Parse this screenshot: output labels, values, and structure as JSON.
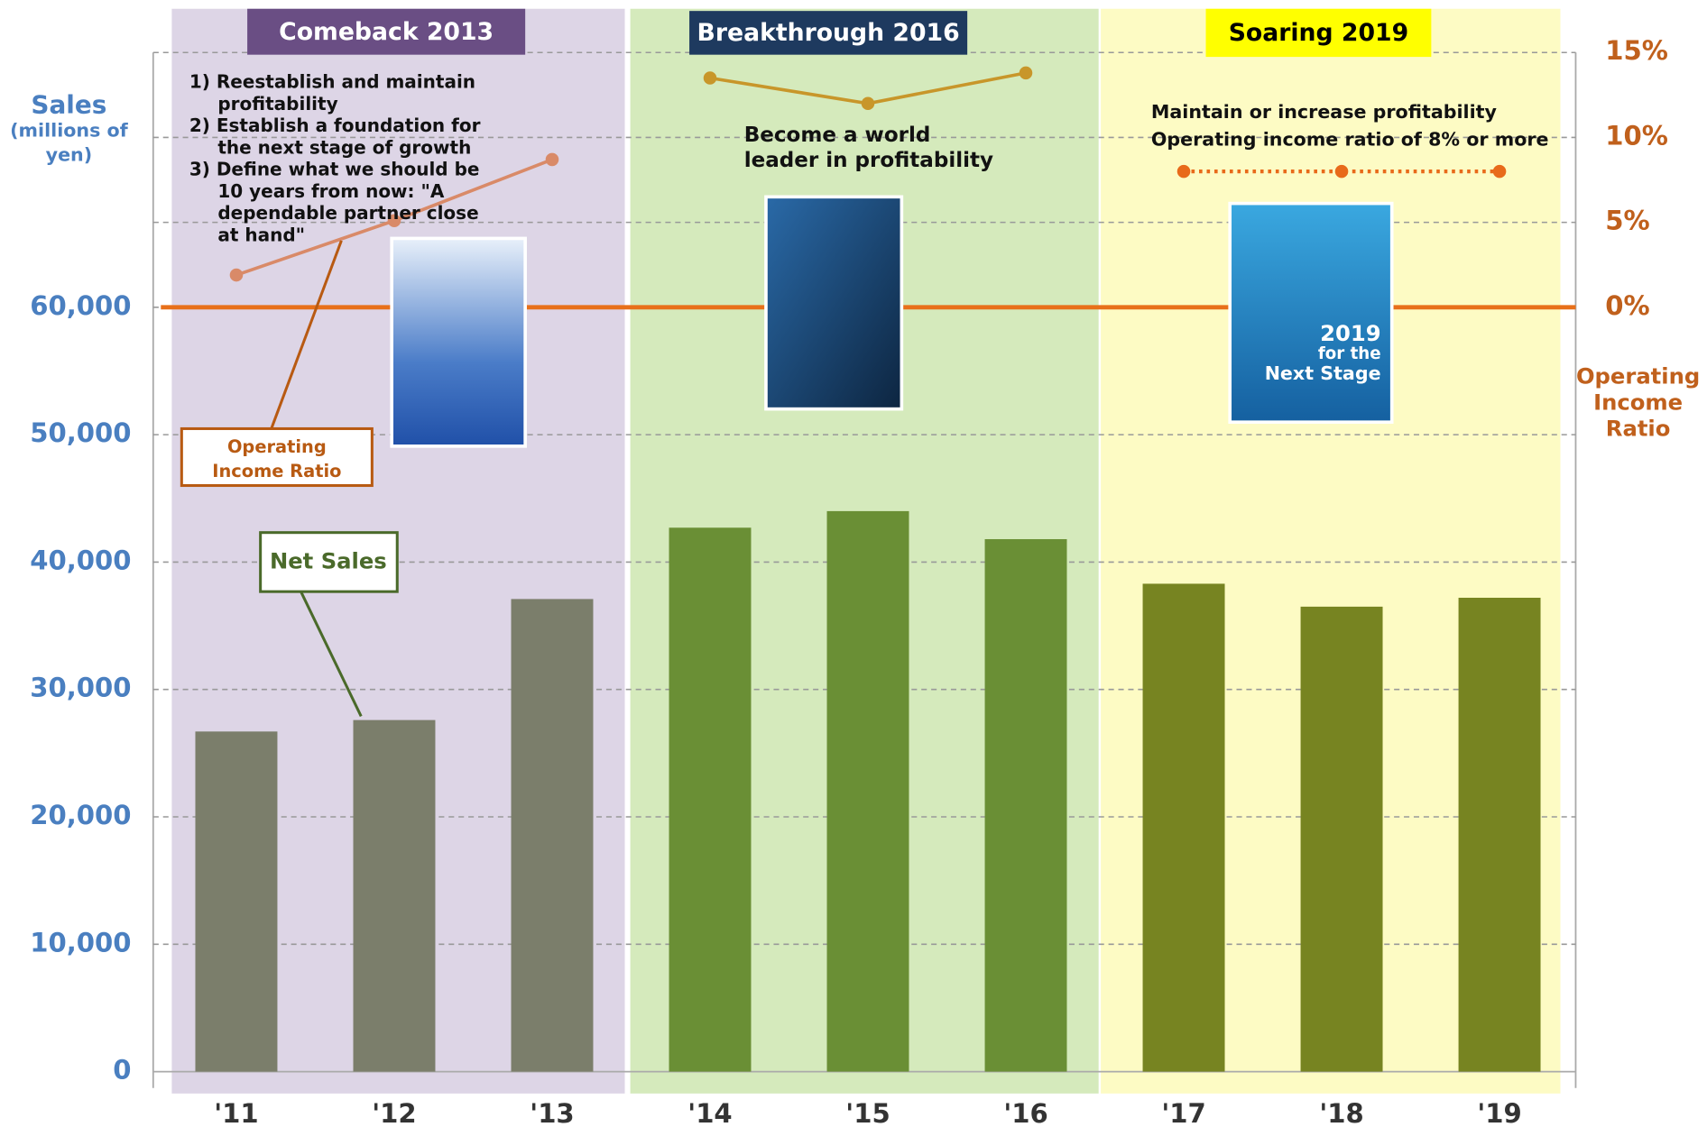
{
  "chart_data": {
    "type": "bar",
    "categories": [
      "'11",
      "'12",
      "'13",
      "'14",
      "'15",
      "'16",
      "'17",
      "'18",
      "'19"
    ],
    "series": [
      {
        "name": "Net Sales",
        "values": [
          26700,
          27600,
          37100,
          42700,
          44000,
          41800,
          38300,
          36500,
          37200
        ],
        "colors": [
          "#7b7e6b",
          "#7b7e6b",
          "#7b7e6b",
          "#6a8f35",
          "#6a8f35",
          "#6a8f35",
          "#778421",
          "#778421",
          "#778421"
        ]
      },
      {
        "name": "Operating Income Ratio",
        "type": "line",
        "axis": "y2",
        "values": [
          1.9,
          5.1,
          8.7,
          13.5,
          12.0,
          13.8,
          8,
          8,
          8
        ],
        "colors": [
          "#d98a68",
          "#c8962a",
          "#e86a1a"
        ],
        "styles": [
          "solid",
          "solid",
          "dotted"
        ]
      }
    ],
    "ylim": [
      0,
      80000
    ],
    "yticks": [
      0,
      {
        "value": 10000,
        "label": "10,000"
      },
      {
        "value": 20000,
        "label": "20,000"
      },
      {
        "value": 30000,
        "label": "30,000"
      },
      {
        "value": 40000,
        "label": "40,000"
      },
      {
        "value": 50000,
        "label": "50,000"
      },
      {
        "value": 60000,
        "label": "60,000"
      }
    ],
    "y2lim": [
      -45,
      15
    ],
    "y2ticks": [
      {
        "value": 0,
        "label": "0%"
      },
      {
        "value": 5,
        "label": "5%"
      },
      {
        "value": 10,
        "label": "10%"
      },
      {
        "value": 15,
        "label": "15%"
      }
    ],
    "y_axis_label": [
      "Sales",
      "(millions of",
      "yen)"
    ],
    "y2_axis_label": [
      "Operating",
      "Income",
      "Ratio"
    ],
    "grid": true,
    "phases": [
      {
        "title": "Comeback 2013",
        "header_color": "#6a4e84",
        "header_text_color": "#ffffff",
        "background": "#ddd5e6",
        "notes": [
          [
            "1) Reestablish and maintain",
            "profitability"
          ],
          [
            "2) Establish a foundation for",
            "the next stage of growth"
          ],
          [
            "3) Define what we should be",
            "10 years from now: \"A",
            "dependable partner close",
            "at hand\""
          ]
        ]
      },
      {
        "title": "Breakthrough 2016",
        "header_color": "#1e3a5f",
        "header_text_color": "#ffffff",
        "background": "#d5eabc",
        "notes": [
          [
            "Become a world",
            "leader in profitability"
          ]
        ]
      },
      {
        "title": "Soaring 2019",
        "header_color": "#ffff00",
        "header_text_color": "#000000",
        "background": "#fdfbc4",
        "notes": [
          [
            "Maintain or increase profitability"
          ],
          [
            "Operating income ratio of 8% or more"
          ]
        ],
        "poster_texts": [
          "2019",
          "for the",
          "Next Stage"
        ]
      }
    ]
  }
}
